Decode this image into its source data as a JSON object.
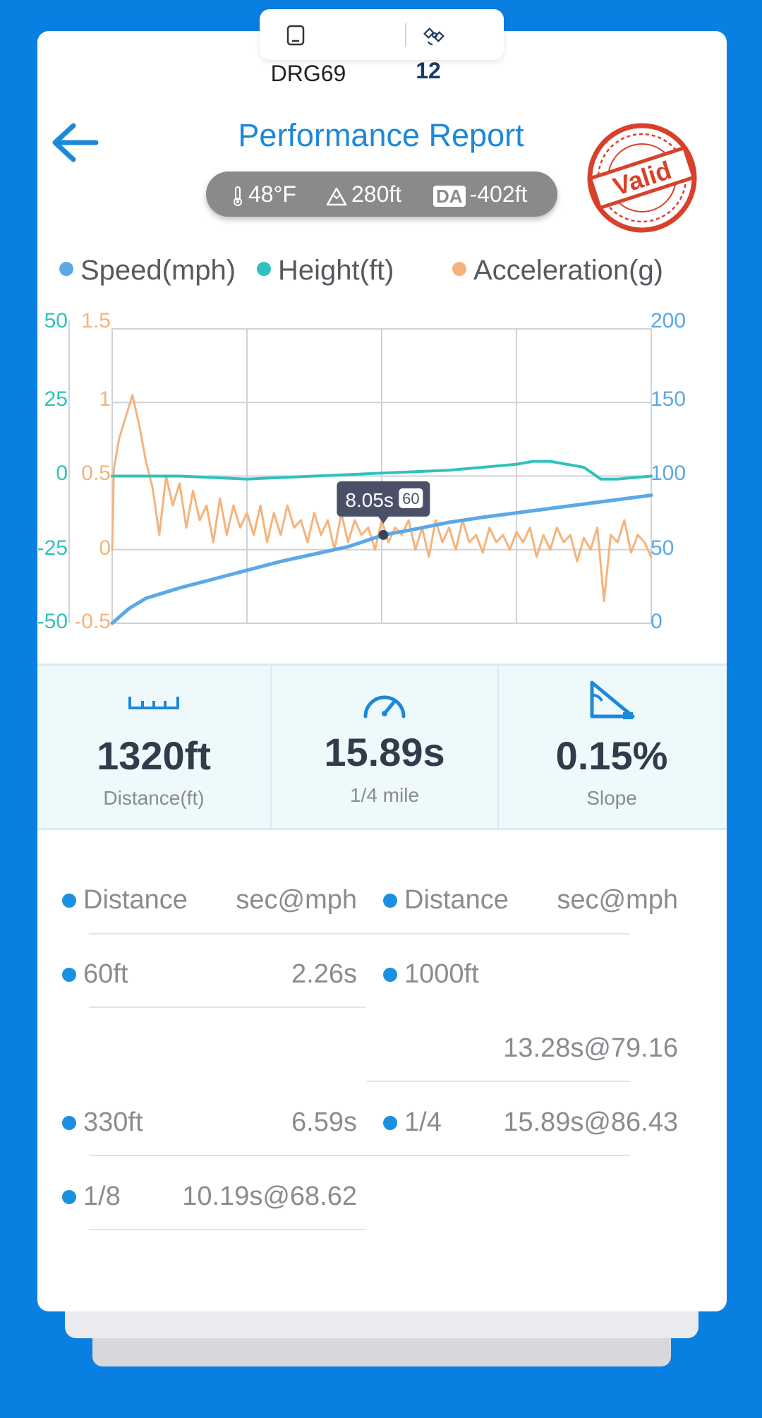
{
  "device": {
    "name": "DRG69",
    "satellite_count": "12",
    "phone_icon": "phone-outline-icon",
    "satellite_icon": "satellite-icon"
  },
  "header": {
    "title": "Performance Report",
    "back_icon": "back-arrow-icon",
    "stamp_text": "Valid",
    "stamp_color": "#d9402a"
  },
  "environment": {
    "temperature": "48°F",
    "altitude": "280ft",
    "da_badge": "DA",
    "density_altitude": "-402ft"
  },
  "colors": {
    "speed": "#5ca8e6",
    "height": "#2fc2bd",
    "acceleration": "#f5b37c",
    "accent": "#1e88d8",
    "background": "#0a7fe2"
  },
  "chart_data": {
    "type": "line",
    "legend": [
      "Speed(mph)",
      "Height(ft)",
      "Acceleration(g)"
    ],
    "legend_position": "top",
    "grid": true,
    "x_range": [
      0,
      16
    ],
    "axes": {
      "height_left": {
        "ticks": [
          "50",
          "25",
          "0",
          "-25",
          "-50"
        ],
        "range": [
          -50,
          50
        ]
      },
      "accel_left": {
        "ticks": [
          "1.5",
          "1",
          "0.5",
          "0",
          "-0.5"
        ],
        "range": [
          -0.5,
          1.5
        ]
      },
      "speed_right": {
        "ticks": [
          "200",
          "150",
          "100",
          "50",
          "0"
        ],
        "range": [
          0,
          200
        ]
      }
    },
    "tooltip": {
      "time": "8.05s",
      "value": "60"
    },
    "series": [
      {
        "name": "Speed(mph)",
        "axis": "speed_right",
        "x": [
          0,
          0.5,
          1,
          2,
          3,
          4,
          5,
          6,
          7,
          8.05,
          9,
          10,
          11,
          12,
          13,
          14,
          15,
          16
        ],
        "y": [
          0,
          10,
          17,
          24,
          30,
          36,
          42,
          47,
          52,
          60,
          64,
          68.6,
          72,
          75,
          78,
          81,
          84,
          87
        ]
      },
      {
        "name": "Height(ft)",
        "axis": "height_left",
        "x": [
          0,
          2,
          4,
          6,
          8,
          10,
          11,
          12,
          12.5,
          13,
          14,
          14.5,
          15,
          16
        ],
        "y": [
          0,
          0,
          -1,
          0,
          1,
          2,
          3,
          4,
          5,
          5,
          3,
          -1,
          -1,
          0
        ]
      },
      {
        "name": "Acceleration(g)",
        "axis": "accel_left",
        "x": [
          0,
          0.05,
          0.2,
          0.4,
          0.6,
          0.8,
          1.0,
          1.2,
          1.4,
          1.6,
          1.8,
          2.0,
          2.2,
          2.4,
          2.6,
          2.8,
          3.0,
          3.2,
          3.4,
          3.6,
          3.8,
          4.0,
          4.2,
          4.4,
          4.6,
          4.8,
          5.0,
          5.2,
          5.4,
          5.6,
          5.8,
          6.0,
          6.2,
          6.4,
          6.6,
          6.8,
          7.0,
          7.2,
          7.4,
          7.6,
          7.8,
          8.0,
          8.2,
          8.4,
          8.6,
          8.8,
          9.0,
          9.2,
          9.4,
          9.6,
          9.8,
          10.0,
          10.2,
          10.4,
          10.6,
          10.8,
          11.0,
          11.2,
          11.4,
          11.6,
          11.8,
          12.0,
          12.2,
          12.4,
          12.6,
          12.8,
          13.0,
          13.2,
          13.4,
          13.6,
          13.8,
          14.0,
          14.2,
          14.4,
          14.6,
          14.8,
          15.0,
          15.2,
          15.4,
          15.6,
          15.8,
          16.0
        ],
        "y": [
          0,
          0.55,
          0.75,
          0.9,
          1.05,
          0.85,
          0.6,
          0.42,
          0.1,
          0.5,
          0.3,
          0.45,
          0.15,
          0.4,
          0.2,
          0.3,
          0.05,
          0.35,
          0.1,
          0.3,
          0.15,
          0.25,
          0.1,
          0.3,
          0.05,
          0.25,
          0.1,
          0.3,
          0.15,
          0.2,
          0.05,
          0.25,
          0.1,
          0.2,
          0.0,
          0.25,
          0.05,
          0.2,
          0.1,
          0.15,
          0.0,
          0.2,
          0.05,
          0.15,
          0.1,
          0.2,
          0.0,
          0.15,
          -0.05,
          0.2,
          0.05,
          0.15,
          0.0,
          0.2,
          0.05,
          0.1,
          -0.02,
          0.15,
          0.05,
          0.1,
          0.0,
          0.12,
          0.05,
          0.15,
          -0.05,
          0.1,
          0.0,
          0.15,
          0.05,
          0.1,
          -0.08,
          0.08,
          0.0,
          0.15,
          -0.35,
          0.1,
          0.05,
          0.2,
          -0.02,
          0.1,
          0.05,
          -0.05
        ]
      }
    ]
  },
  "stats": [
    {
      "icon": "ruler-icon",
      "value": "1320ft",
      "label": "Distance(ft)"
    },
    {
      "icon": "speedometer-icon",
      "value": "15.89s",
      "label": "1/4 mile"
    },
    {
      "icon": "slope-icon",
      "value": "0.15%",
      "label": "Slope"
    }
  ],
  "splits": {
    "headers": {
      "distance": "Distance",
      "time": "sec@mph"
    },
    "left": [
      {
        "distance": "60ft",
        "time": "2.26s"
      },
      {
        "distance": "330ft",
        "time": "6.59s"
      },
      {
        "distance": "1/8",
        "time": "10.19s@68.62"
      }
    ],
    "right": [
      {
        "distance": "1000ft",
        "time": "13.28s@79.16"
      },
      {
        "distance": "1/4",
        "time": "15.89s@86.43"
      }
    ]
  }
}
